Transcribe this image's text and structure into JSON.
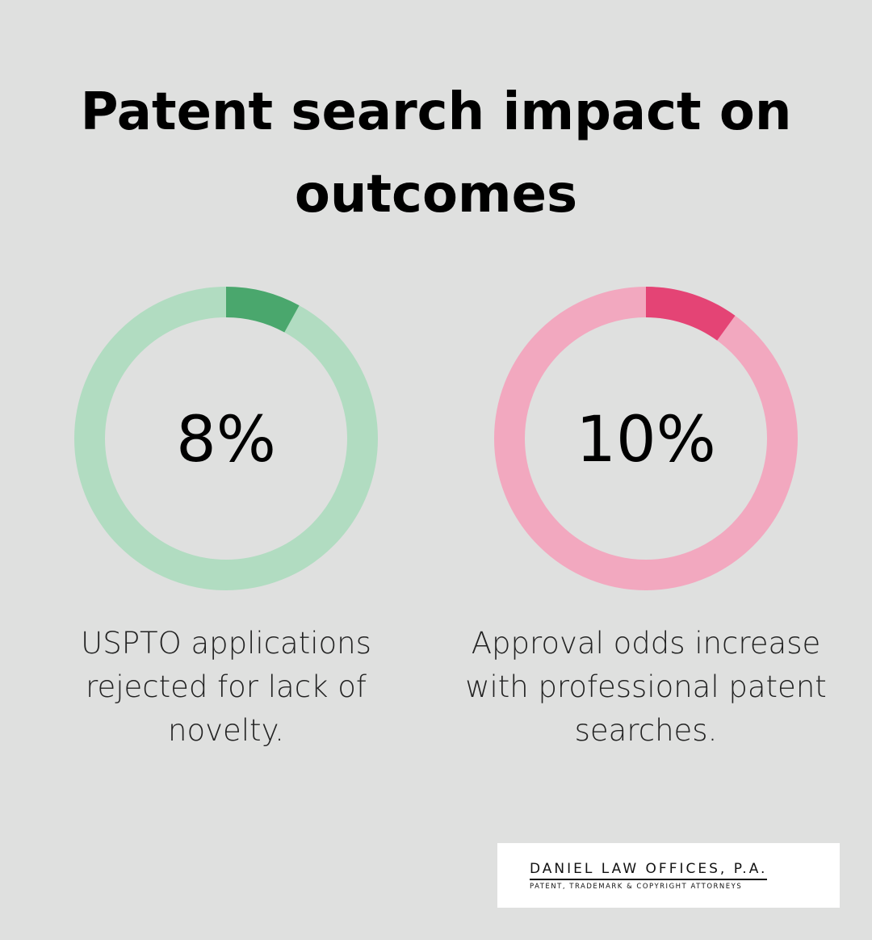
{
  "title": "Patent search impact on outcomes",
  "chart_data": [
    {
      "type": "donut",
      "values": [
        8
      ],
      "value_labels": [
        "8%"
      ],
      "color": "#4aa76d",
      "track_color": "#b1dcc1",
      "caption": "USPTO applications rejected for lack of novelty."
    },
    {
      "type": "donut",
      "values": [
        10
      ],
      "value_labels": [
        "10%"
      ],
      "color": "#e44475",
      "track_color": "#f2a8bf",
      "caption": "Approval odds increase with professional patent searches."
    }
  ],
  "logo": {
    "name": "DANIEL LAW OFFICES, P.A.",
    "tagline": "PATENT, TRADEMARK & COPYRIGHT ATTORNEYS"
  }
}
